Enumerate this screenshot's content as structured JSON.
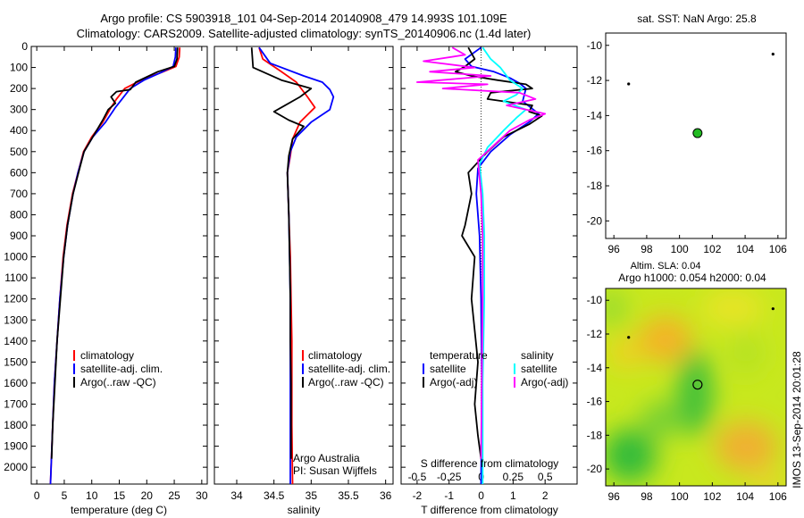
{
  "header": {
    "line1": "Argo profile: CS 5903918_101 04-Sep-2014 20140908_479 14.993S 101.109E",
    "line2": "Climatology: CARS2009. Satellite-adjusted climatology: synTS_20140906.nc (1.4d later)"
  },
  "side_label": "IMOS 13-Sep-2014 20:01:28",
  "credit": {
    "line1": "Argo Australia",
    "line2": "PI: Susan Wijffels"
  },
  "colors": {
    "climatology": "#ff0000",
    "satellite": "#0000ff",
    "argo": "#000000",
    "sal_satellite": "#00ffff",
    "sal_argo": "#ff00ff",
    "dot": "#22bb22"
  },
  "chart_data": [
    {
      "id": "temp",
      "type": "line",
      "xlabel": "temperature (deg C)",
      "ylabel": "",
      "xlim": [
        -1,
        31
      ],
      "ylim": [
        2080,
        0
      ],
      "xticks": [
        0,
        5,
        10,
        15,
        20,
        25,
        30
      ],
      "yticks": [
        0,
        100,
        200,
        300,
        400,
        500,
        600,
        700,
        800,
        900,
        1000,
        1100,
        1200,
        1300,
        1400,
        1500,
        1600,
        1700,
        1800,
        1900,
        2000
      ],
      "series": [
        {
          "name": "climatology",
          "color": "#ff0000",
          "points": [
            [
              26.0,
              5
            ],
            [
              25.9,
              50
            ],
            [
              25.3,
              95
            ],
            [
              23,
              120
            ],
            [
              19,
              160
            ],
            [
              16,
              200
            ],
            [
              14.5,
              250
            ],
            [
              13.5,
              290
            ],
            [
              12,
              360
            ],
            [
              10,
              430
            ],
            [
              8.5,
              500
            ],
            [
              7.5,
              600
            ],
            [
              6.5,
              700
            ],
            [
              5.5,
              850
            ],
            [
              4.8,
              1000
            ],
            [
              4.2,
              1200
            ],
            [
              3.7,
              1400
            ],
            [
              3.2,
              1600
            ],
            [
              2.9,
              1800
            ],
            [
              2.6,
              2000
            ],
            [
              2.5,
              2080
            ]
          ]
        },
        {
          "name": "satellite-adj. clim.",
          "color": "#0000ff",
          "points": [
            [
              25.3,
              5
            ],
            [
              25.2,
              50
            ],
            [
              24.8,
              95
            ],
            [
              22.5,
              125
            ],
            [
              19.5,
              160
            ],
            [
              17,
              200
            ],
            [
              15.5,
              250
            ],
            [
              14.3,
              290
            ],
            [
              12.5,
              360
            ],
            [
              10.2,
              430
            ],
            [
              8.6,
              500
            ],
            [
              7.5,
              600
            ],
            [
              6.6,
              700
            ],
            [
              5.6,
              850
            ],
            [
              4.9,
              1000
            ],
            [
              4.2,
              1200
            ],
            [
              3.7,
              1400
            ],
            [
              3.2,
              1600
            ],
            [
              2.9,
              1800
            ],
            [
              2.6,
              2000
            ],
            [
              2.5,
              2080
            ]
          ]
        },
        {
          "name": "Argo(..raw -QC)",
          "color": "#000000",
          "points": [
            [
              25.6,
              5
            ],
            [
              25.5,
              60
            ],
            [
              25.0,
              95
            ],
            [
              22,
              120
            ],
            [
              18,
              170
            ],
            [
              17,
              205
            ],
            [
              14.5,
              215
            ],
            [
              13.5,
              240
            ],
            [
              14.3,
              270
            ],
            [
              13,
              300
            ],
            [
              12,
              350
            ],
            [
              10.2,
              430
            ],
            [
              8.6,
              500
            ],
            [
              7.6,
              600
            ],
            [
              6.6,
              700
            ],
            [
              5.6,
              850
            ],
            [
              4.9,
              1000
            ],
            [
              4.3,
              1200
            ],
            [
              3.7,
              1400
            ],
            [
              3.3,
              1600
            ],
            [
              2.9,
              1800
            ],
            [
              2.7,
              1960
            ]
          ]
        }
      ],
      "legend": [
        "climatology",
        "satellite-adj. clim.",
        "Argo(..raw -QC)"
      ]
    },
    {
      "id": "sal",
      "type": "line",
      "xlabel": "salinity",
      "xlim": [
        33.7,
        36.1
      ],
      "ylim": [
        2080,
        0
      ],
      "xticks": [
        34,
        34.5,
        35,
        35.5,
        36
      ],
      "series": [
        {
          "name": "climatology",
          "color": "#ff0000",
          "points": [
            [
              34.3,
              5
            ],
            [
              34.35,
              60
            ],
            [
              34.6,
              120
            ],
            [
              34.8,
              170
            ],
            [
              34.95,
              240
            ],
            [
              35.05,
              290
            ],
            [
              34.85,
              360
            ],
            [
              34.75,
              440
            ],
            [
              34.72,
              520
            ],
            [
              34.68,
              600
            ],
            [
              34.7,
              800
            ],
            [
              34.72,
              1000
            ],
            [
              34.73,
              1200
            ],
            [
              34.74,
              1400
            ],
            [
              34.74,
              1600
            ],
            [
              34.74,
              1800
            ],
            [
              34.75,
              2080
            ]
          ]
        },
        {
          "name": "satellite-adj. clim.",
          "color": "#0000ff",
          "points": [
            [
              34.3,
              5
            ],
            [
              34.45,
              80
            ],
            [
              34.9,
              140
            ],
            [
              35.15,
              170
            ],
            [
              35.25,
              205
            ],
            [
              35.3,
              240
            ],
            [
              35.25,
              300
            ],
            [
              35.0,
              360
            ],
            [
              34.8,
              430
            ],
            [
              34.72,
              500
            ],
            [
              34.68,
              600
            ],
            [
              34.7,
              800
            ],
            [
              34.71,
              1000
            ],
            [
              34.72,
              1200
            ],
            [
              34.72,
              1400
            ],
            [
              34.72,
              1600
            ],
            [
              34.72,
              1800
            ],
            [
              34.72,
              2080
            ]
          ]
        },
        {
          "name": "Argo(..raw -QC)",
          "color": "#000000",
          "points": [
            [
              34.2,
              5
            ],
            [
              34.22,
              100
            ],
            [
              34.6,
              160
            ],
            [
              34.8,
              180
            ],
            [
              35.0,
              200
            ],
            [
              34.85,
              240
            ],
            [
              34.6,
              290
            ],
            [
              34.5,
              310
            ],
            [
              34.7,
              350
            ],
            [
              34.9,
              380
            ],
            [
              34.75,
              440
            ],
            [
              34.7,
              520
            ],
            [
              34.68,
              600
            ],
            [
              34.7,
              800
            ],
            [
              34.71,
              1000
            ],
            [
              34.72,
              1200
            ],
            [
              34.72,
              1400
            ],
            [
              34.73,
              1600
            ],
            [
              34.73,
              1800
            ],
            [
              34.73,
              1960
            ]
          ]
        }
      ],
      "legend": [
        "climatology",
        "satellite-adj. clim.",
        "Argo(..raw -QC)"
      ]
    },
    {
      "id": "diff",
      "type": "line",
      "xlabel": "T difference from climatology",
      "xlabel_top": "S difference from climatology",
      "xlim": [
        -2.5,
        3.0
      ],
      "ylim": [
        2080,
        0
      ],
      "xticks": [
        -2,
        -1,
        0,
        1,
        2
      ],
      "xticks_top": [
        -0.5,
        -0.25,
        0,
        0.25,
        0.5
      ],
      "xticks_top_labels": [
        "-0.5",
        "-0.25",
        "0",
        "0.25",
        "0.5"
      ],
      "series": [
        {
          "name": "temperature satellite",
          "color": "#0000ff",
          "points": [
            [
              0,
              5
            ],
            [
              -0.5,
              60
            ],
            [
              -0.3,
              95
            ],
            [
              0.4,
              120
            ],
            [
              0.9,
              150
            ],
            [
              1.2,
              175
            ],
            [
              1.4,
              200
            ],
            [
              1.3,
              260
            ],
            [
              1.8,
              320
            ],
            [
              1.5,
              360
            ],
            [
              0.9,
              420
            ],
            [
              0.3,
              500
            ],
            [
              -0.1,
              580
            ],
            [
              -0.15,
              700
            ],
            [
              -0.05,
              900
            ],
            [
              0,
              1200
            ],
            [
              0.02,
              1600
            ],
            [
              0,
              2080
            ]
          ]
        },
        {
          "name": "temperature Argo(-adj)",
          "color": "#000000",
          "points": [
            [
              -0.4,
              5
            ],
            [
              -0.2,
              60
            ],
            [
              -0.5,
              95
            ],
            [
              -0.8,
              120
            ],
            [
              -0.3,
              140
            ],
            [
              0.5,
              160
            ],
            [
              1.4,
              180
            ],
            [
              1.6,
              200
            ],
            [
              0.3,
              220
            ],
            [
              0.2,
              250
            ],
            [
              1.6,
              280
            ],
            [
              1.5,
              310
            ],
            [
              1.9,
              330
            ],
            [
              1.5,
              370
            ],
            [
              0.7,
              430
            ],
            [
              0.2,
              500
            ],
            [
              -0.4,
              600
            ],
            [
              -0.3,
              700
            ],
            [
              -0.5,
              850
            ],
            [
              -0.6,
              900
            ],
            [
              -0.2,
              1000
            ],
            [
              -0.3,
              1200
            ],
            [
              -0.1,
              1500
            ],
            [
              -0.2,
              1700
            ],
            [
              -0.1,
              1850
            ],
            [
              0,
              1960
            ]
          ]
        },
        {
          "name": "salinity satellite",
          "color": "#00ffff",
          "points": [
            [
              0.05,
              5
            ],
            [
              0.3,
              60
            ],
            [
              0.6,
              100
            ],
            [
              0.9,
              160
            ],
            [
              1.3,
              200
            ],
            [
              1.1,
              230
            ],
            [
              0.7,
              260
            ],
            [
              1.4,
              300
            ],
            [
              1.1,
              340
            ],
            [
              0.7,
              400
            ],
            [
              0.2,
              480
            ],
            [
              -0.05,
              560
            ],
            [
              0.05,
              700
            ],
            [
              0.1,
              900
            ],
            [
              0.1,
              1200
            ],
            [
              0.05,
              1600
            ],
            [
              0.05,
              2080
            ]
          ]
        },
        {
          "name": "salinity Argo(-adj)",
          "color": "#ff00ff",
          "points": [
            [
              -0.9,
              5
            ],
            [
              -0.5,
              40
            ],
            [
              -1.8,
              70
            ],
            [
              -0.2,
              100
            ],
            [
              -1.6,
              120
            ],
            [
              0.3,
              140
            ],
            [
              -2.0,
              170
            ],
            [
              0.2,
              180
            ],
            [
              -1.2,
              200
            ],
            [
              1.2,
              220
            ],
            [
              1.7,
              250
            ],
            [
              0.8,
              280
            ],
            [
              2.0,
              320
            ],
            [
              1.5,
              350
            ],
            [
              0.9,
              400
            ],
            [
              0.4,
              470
            ],
            [
              -0.1,
              540
            ],
            [
              0.0,
              700
            ],
            [
              0.05,
              900
            ],
            [
              0.05,
              1200
            ],
            [
              0.02,
              1600
            ],
            [
              0.0,
              1960
            ]
          ]
        }
      ],
      "legend_left_title": "temperature",
      "legend_right_title": "salinity",
      "legend_left": [
        "satellite",
        "Argo(-adj)"
      ],
      "legend_right": [
        "satellite",
        "Argo(-adj)"
      ]
    },
    {
      "id": "map_sst",
      "type": "scatter",
      "title": "sat. SST: NaN Argo: 25.8",
      "xlim": [
        95.5,
        106.5
      ],
      "ylim": [
        -21,
        -9.3
      ],
      "xticks": [
        96,
        98,
        100,
        102,
        104,
        106
      ],
      "yticks": [
        -10,
        -12,
        -14,
        -16,
        -18,
        -20
      ],
      "points": [
        {
          "x": 101.1,
          "y": -15.0,
          "kind": "argo"
        },
        {
          "x": 96.9,
          "y": -12.2,
          "kind": "dot"
        },
        {
          "x": 105.7,
          "y": -10.5,
          "kind": "dot"
        }
      ]
    },
    {
      "id": "map_sla",
      "type": "heatmap",
      "title_line1": "Altim. SLA: 0.04",
      "title_line2": "Argo h1000: 0.054 h2000: 0.04",
      "xlim": [
        95.5,
        106.5
      ],
      "ylim": [
        -21,
        -9.3
      ],
      "xticks": [
        96,
        98,
        100,
        102,
        104,
        106
      ],
      "yticks": [
        -10,
        -12,
        -14,
        -16,
        -18,
        -20
      ],
      "points": [
        {
          "x": 101.1,
          "y": -15.0,
          "kind": "argo"
        },
        {
          "x": 96.9,
          "y": -12.2,
          "kind": "dot"
        },
        {
          "x": 105.7,
          "y": -10.5,
          "kind": "dot"
        }
      ]
    }
  ]
}
